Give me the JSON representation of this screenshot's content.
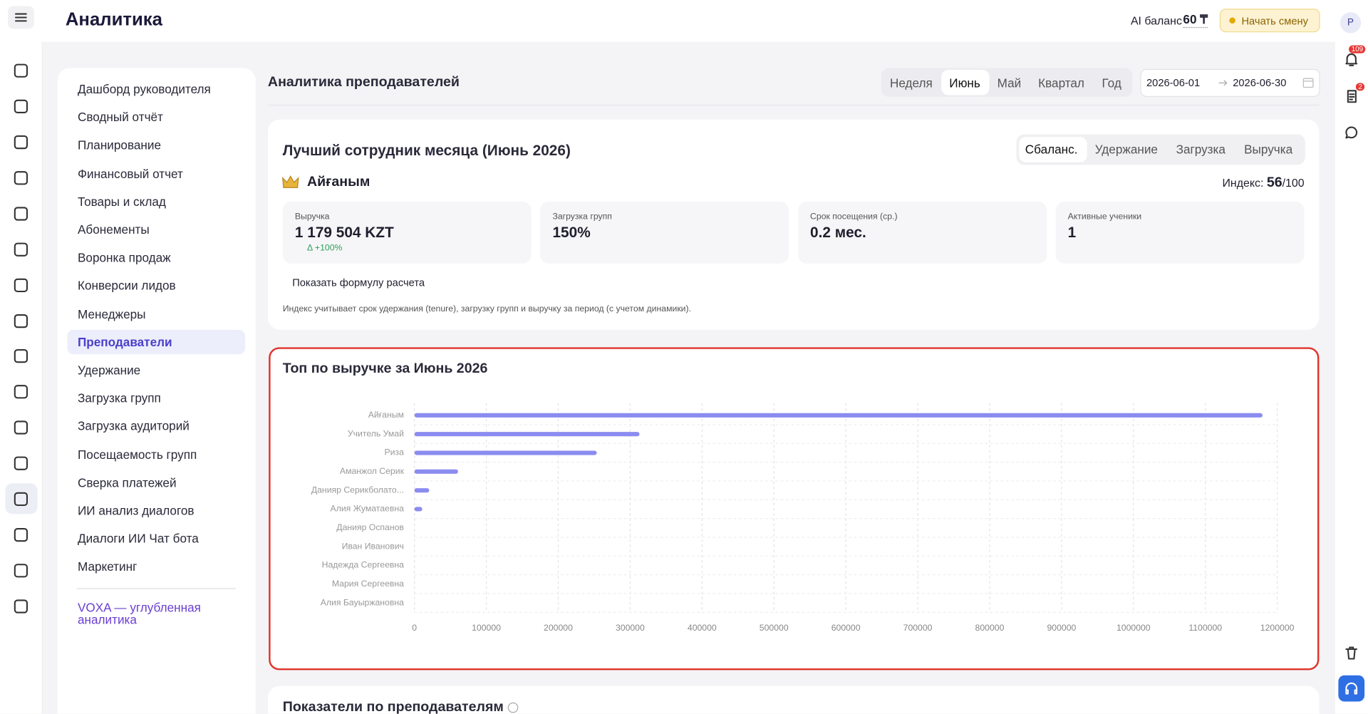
{
  "header": {
    "title": "Аналитика",
    "ai_balance_label": "AI баланс",
    "ai_balance_value": "60 ₸",
    "start_shift": "Начать смену",
    "avatar": "Р",
    "notifications": 109,
    "documents": 2
  },
  "sidebar": {
    "items": [
      "Дашборд руководителя",
      "Сводный отчёт",
      "Планирование",
      "Финансовый отчет",
      "Товары и склад",
      "Абонементы",
      "Воронка продаж",
      "Конверсии лидов",
      "Менеджеры",
      "Преподаватели",
      "Удержание",
      "Загрузка групп",
      "Загрузка аудиторий",
      "Посещаемость групп",
      "Сверка платежей",
      "ИИ анализ диалогов",
      "Диалоги ИИ Чат бота",
      "Маркетинг"
    ],
    "active": 9,
    "footer_link": "VOXA — углубленная аналитика"
  },
  "page": {
    "title": "Аналитика преподавателей",
    "periods": [
      "Неделя",
      "Июнь",
      "Май",
      "Квартал",
      "Год"
    ],
    "active_period": 1,
    "date_from": "2026-06-01",
    "date_to": "2026-06-30"
  },
  "best": {
    "title": "Лучший сотрудник месяца (Июнь 2026)",
    "tabs": [
      "Сбаланс.",
      "Удержание",
      "Загрузка",
      "Выручка"
    ],
    "active_tab": 0,
    "name": "Айғаным",
    "index_label": "Индекс:",
    "index_value": 56,
    "index_max": "/100",
    "stats": [
      {
        "label": "Выручка",
        "value": "1 179 504 KZT",
        "delta": "Δ +100%"
      },
      {
        "label": "Загрузка групп",
        "value": "150%"
      },
      {
        "label": "Срок посещения (ср.)",
        "value": "0.2 мес."
      },
      {
        "label": "Активные ученики",
        "value": "1"
      }
    ],
    "formula_button": "Показать формулу расчета",
    "note": "Индекс учитывает срок удержания (tenure), загрузку групп и выручку за период (с учетом динамики)."
  },
  "chart_data": {
    "type": "bar",
    "orientation": "horizontal",
    "title": "Топ по выручке за Июнь 2026",
    "categories": [
      "Айғаным",
      "Учитель Умай",
      "Риза",
      "Аманжол Серик",
      "Данияр Серикболато...",
      "Алия Жуматаевна",
      "Данияр Оспанов",
      "Иван Иванович",
      "Надежда Сергеевна",
      "Мария Сергеевна",
      "Алия Бауыржановна"
    ],
    "values": [
      1179504,
      313000,
      253600,
      60700,
      20600,
      10900,
      0,
      0,
      0,
      0,
      0
    ],
    "color": "#8b8cf0",
    "xlim": [
      0,
      1200000
    ],
    "xticks": [
      0,
      100000,
      200000,
      300000,
      400000,
      500000,
      600000,
      700000,
      800000,
      900000,
      1000000,
      1100000,
      1200000
    ],
    "grid": true
  },
  "next_section": {
    "title": "Показатели по преподавателям"
  }
}
